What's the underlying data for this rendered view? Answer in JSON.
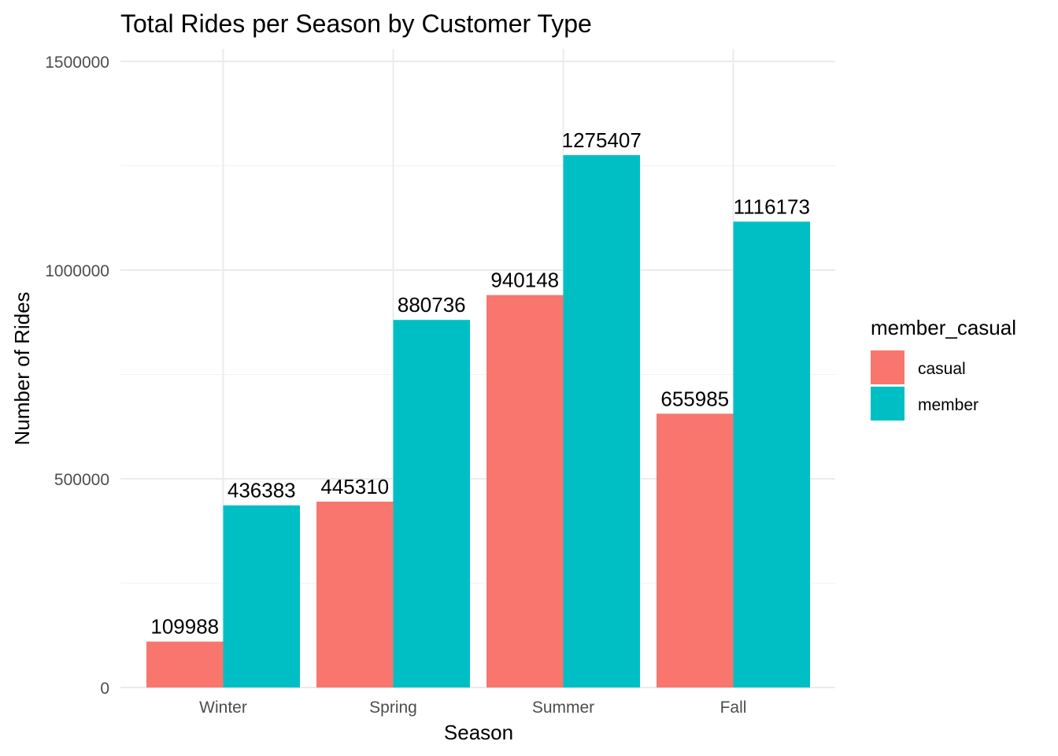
{
  "chart_data": {
    "type": "bar",
    "title": "Total Rides per Season by Customer Type",
    "xlabel": "Season",
    "ylabel": "Number of Rides",
    "categories": [
      "Winter",
      "Spring",
      "Summer",
      "Fall"
    ],
    "series": [
      {
        "name": "casual",
        "color": "#F8766D",
        "values": [
          109988,
          445310,
          940148,
          655985
        ]
      },
      {
        "name": "member",
        "color": "#00BFC4",
        "values": [
          436383,
          880736,
          1275407,
          1116173
        ]
      }
    ],
    "ylim": [
      0,
      1500000
    ],
    "yticks": [
      0,
      500000,
      1000000,
      1500000
    ],
    "ytick_labels": [
      "0",
      "500000",
      "1000000",
      "1500000"
    ],
    "legend": {
      "title": "member_casual",
      "position": "right"
    },
    "grid": true
  }
}
